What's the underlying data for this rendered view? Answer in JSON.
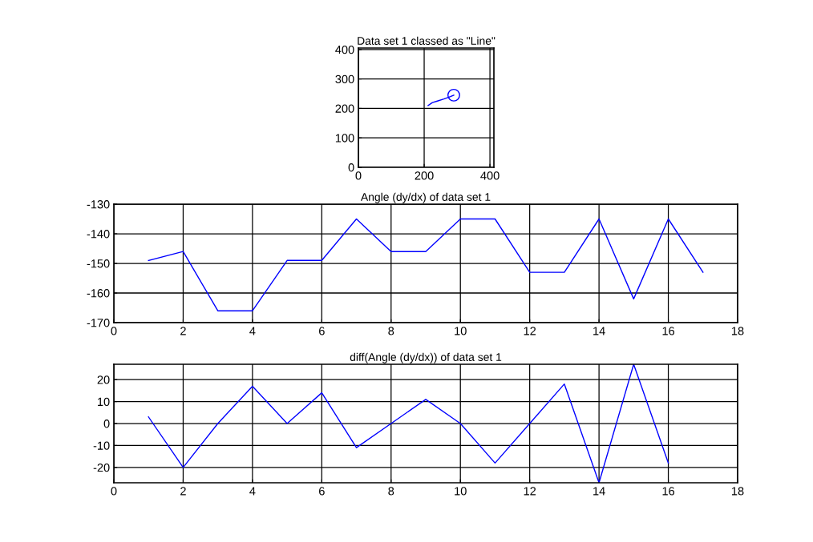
{
  "chart_data": [
    {
      "type": "line",
      "title": "Data set 1 classed as \"Line\"",
      "xlim": [
        0,
        412
      ],
      "ylim": [
        0,
        405
      ],
      "xticks": [
        0,
        200,
        400
      ],
      "yticks": [
        0,
        100,
        200,
        300,
        400
      ],
      "grid": true,
      "series": [
        {
          "x": [
            212,
            225,
            240,
            260,
            280,
            290
          ],
          "values": [
            210,
            220,
            225,
            232,
            240,
            245
          ],
          "color": "#0000ff",
          "marker": "none"
        },
        {
          "type": "scatter",
          "x": [
            290
          ],
          "values": [
            245
          ],
          "color": "#0000ff",
          "marker": "circle"
        }
      ]
    },
    {
      "type": "line",
      "title": "Angle (dy/dx) of data set 1",
      "x": [
        1,
        2,
        3,
        4,
        5,
        6,
        7,
        8,
        9,
        10,
        11,
        12,
        13,
        14,
        15,
        16,
        17
      ],
      "xlim": [
        0,
        18
      ],
      "ylim": [
        -170,
        -130
      ],
      "xticks": [
        0,
        2,
        4,
        6,
        8,
        10,
        12,
        14,
        16,
        18
      ],
      "yticks": [
        -170,
        -160,
        -150,
        -140,
        -130
      ],
      "grid": true,
      "marker": "none",
      "series": [
        {
          "color": "#0000ff",
          "values": [
            -149,
            -146,
            -166,
            -166,
            -149,
            -149,
            -135,
            -146,
            -146,
            -135,
            -135,
            -153,
            -153,
            -135,
            -162,
            -135,
            -153
          ]
        }
      ]
    },
    {
      "type": "line",
      "title": "diff(Angle (dy/dx)) of data set 1",
      "x": [
        1,
        2,
        3,
        4,
        5,
        6,
        7,
        8,
        9,
        10,
        11,
        12,
        13,
        14,
        15,
        16
      ],
      "xlim": [
        0,
        18
      ],
      "ylim": [
        -27,
        27
      ],
      "xticks": [
        0,
        2,
        4,
        6,
        8,
        10,
        12,
        14,
        16,
        18
      ],
      "yticks": [
        -20,
        -10,
        0,
        10,
        20
      ],
      "grid": true,
      "marker": "none",
      "series": [
        {
          "color": "#0000ff",
          "values": [
            3,
            -20,
            0,
            17,
            0,
            14,
            -11,
            0,
            11,
            0,
            -18,
            0,
            18,
            -27,
            27,
            -18
          ]
        }
      ]
    }
  ]
}
